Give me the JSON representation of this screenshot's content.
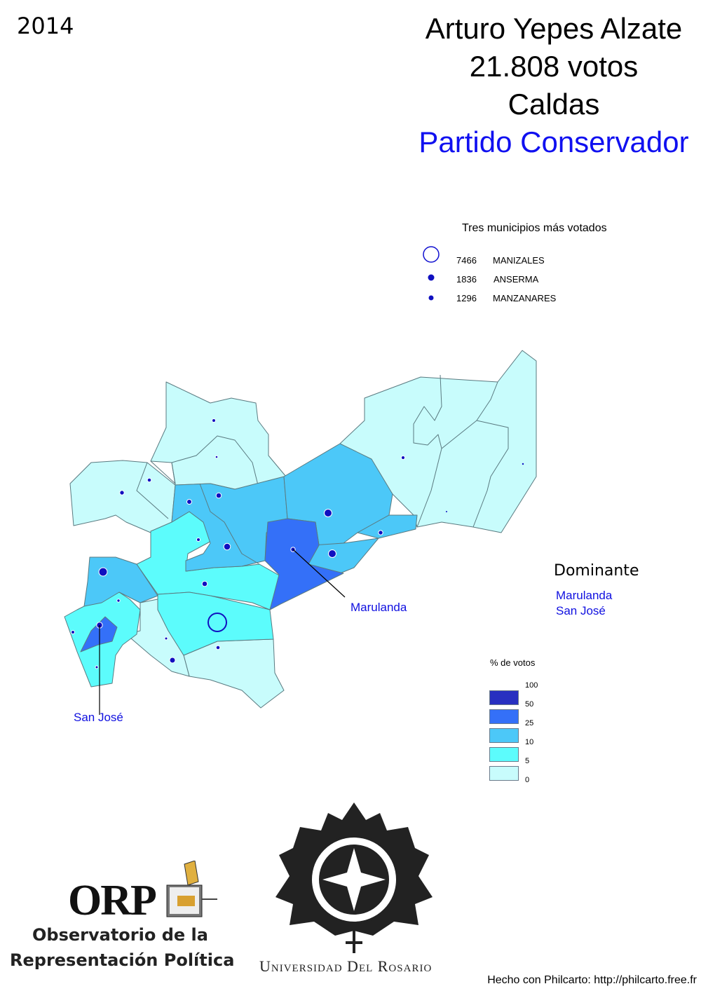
{
  "year": "2014",
  "header": {
    "candidate": "Arturo Yepes Alzate",
    "votes": "21.808 votos",
    "department": "Caldas",
    "party": "Partido Conservador"
  },
  "top_municipalities": {
    "title": "Tres municipios más votados",
    "rows": [
      {
        "votes": "7466",
        "name": "MANIZALES",
        "symbol": "open-circle"
      },
      {
        "votes": "1836",
        "name": "ANSERMA",
        "symbol": "filled-dot"
      },
      {
        "votes": "1296",
        "name": "MANZANARES",
        "symbol": "filled-dot"
      }
    ]
  },
  "dominant": {
    "title": "Dominante",
    "items": [
      "Marulanda",
      "San José"
    ]
  },
  "map_labels": {
    "marulanda": "Marulanda",
    "san_jose": "San José"
  },
  "legend": {
    "title": "% de votos",
    "breaks": [
      "100",
      "50",
      "25",
      "10",
      "5",
      "0"
    ],
    "classes": [
      {
        "range": "50-100",
        "color": "#2830c0"
      },
      {
        "range": "25-50",
        "color": "#3470f8"
      },
      {
        "range": "10-25",
        "color": "#4cc8f8"
      },
      {
        "range": "5-10",
        "color": "#5cfcfc"
      },
      {
        "range": "0-5",
        "color": "#c8fcfc"
      }
    ]
  },
  "logos": {
    "orp": "ORP",
    "orp_line1": "Observatorio de la",
    "orp_line2": "Representación Política",
    "university": "Universidad Del Rosario"
  },
  "credit": "Hecho con Philcarto: http://philcarto.free.fr"
}
